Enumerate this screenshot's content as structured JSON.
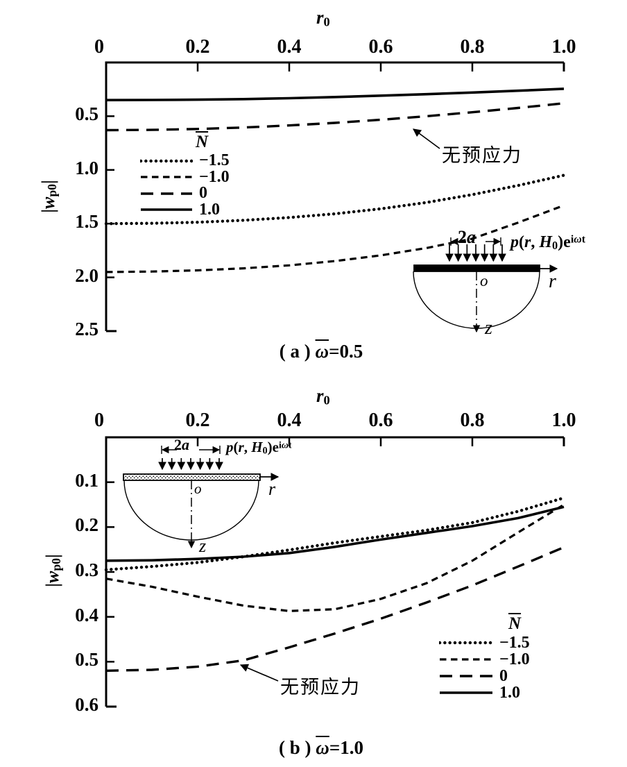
{
  "figure": {
    "background": "#ffffff",
    "ink": "#000000",
    "description": "Two stacked line charts of |wp0| versus r0 for four prestress levels N, each with an embedded half-space load schematic and a Chinese annotation meaning no prestress"
  },
  "chart_data": [
    {
      "id": "a",
      "type": "line",
      "caption": {
        "tag": "( a )",
        "symbol": "ω",
        "value": "=0.5"
      },
      "x_axis": {
        "title": "r",
        "title_sub": "0",
        "position": "top",
        "range": [
          0,
          1.0
        ],
        "tick_values": [
          0,
          0.2,
          0.4,
          0.6,
          0.8,
          1.0
        ],
        "tick_labels": [
          "0",
          "0.2",
          "0.4",
          "0.6",
          "0.8",
          "1.0"
        ]
      },
      "y_axis": {
        "label_open": "|",
        "label_symbol": "w",
        "label_sub": "p0",
        "label_close": "|",
        "range": [
          0,
          2.5
        ],
        "inverted": true,
        "grid": false,
        "tick_values": [
          0.5,
          1.0,
          1.5,
          2.0,
          2.5
        ],
        "tick_labels": [
          "0.5",
          "1.0",
          "1.5",
          "2.0",
          "2.5"
        ]
      },
      "legend": {
        "title": "N",
        "items": [
          {
            "label": "−1.5",
            "dash": "dotted"
          },
          {
            "label": "−1.0",
            "dash": "shortdash"
          },
          {
            "label": "0",
            "dash": "longdash"
          },
          {
            "label": "1.0",
            "dash": "solid"
          }
        ]
      },
      "annotation": {
        "text": "无预应力",
        "points_to": "N=0 curve"
      },
      "x": [
        0,
        0.1,
        0.2,
        0.3,
        0.4,
        0.5,
        0.6,
        0.7,
        0.8,
        0.9,
        1.0
      ],
      "series": [
        {
          "name": "N=−1.5",
          "dash": "dotted",
          "values": [
            1.5,
            1.497,
            1.487,
            1.469,
            1.443,
            1.408,
            1.362,
            1.303,
            1.23,
            1.145,
            1.05
          ]
        },
        {
          "name": "N=−1.0",
          "dash": "shortdash",
          "values": [
            1.95,
            1.946,
            1.935,
            1.916,
            1.888,
            1.848,
            1.795,
            1.727,
            1.64,
            1.49,
            1.33
          ]
        },
        {
          "name": "N=0",
          "dash": "longdash",
          "values": [
            0.63,
            0.627,
            0.619,
            0.605,
            0.586,
            0.562,
            0.533,
            0.5,
            0.463,
            0.423,
            0.38
          ]
        },
        {
          "name": "N=1.0",
          "dash": "solid",
          "values": [
            0.35,
            0.349,
            0.346,
            0.341,
            0.333,
            0.322,
            0.309,
            0.295,
            0.28,
            0.263,
            0.245
          ]
        }
      ],
      "inset": {
        "plate_fill": "solid-black",
        "dim_label": {
          "coef": "2",
          "var": "a"
        },
        "load_label": {
          "fn": "p",
          "paren_open": "(",
          "arg1": "r",
          "comma": ", ",
          "arg2": "H",
          "arg2_sub": "0",
          "paren_close": ")",
          "base": "e",
          "exp_i": "i",
          "exp_omega": "ω",
          "exp_t": "t"
        },
        "origin_label": "o",
        "r_axis_label": "r",
        "z_axis_label": "z"
      }
    },
    {
      "id": "b",
      "type": "line",
      "caption": {
        "tag": "( b )",
        "symbol": "ω",
        "value": "=1.0"
      },
      "x_axis": {
        "title": "r",
        "title_sub": "0",
        "position": "top",
        "range": [
          0,
          1.0
        ],
        "tick_values": [
          0,
          0.2,
          0.4,
          0.6,
          0.8,
          1.0
        ],
        "tick_labels": [
          "0",
          "0.2",
          "0.4",
          "0.6",
          "0.8",
          "1.0"
        ]
      },
      "y_axis": {
        "label_open": "|",
        "label_symbol": "w",
        "label_sub": "p0",
        "label_close": "|",
        "range": [
          0,
          0.6
        ],
        "inverted": true,
        "grid": false,
        "tick_values": [
          0.1,
          0.2,
          0.3,
          0.4,
          0.5,
          0.6
        ],
        "tick_labels": [
          "0.1",
          "0.2",
          "0.3",
          "0.4",
          "0.5",
          "0.6"
        ]
      },
      "legend": {
        "title": "N",
        "items": [
          {
            "label": "−1.5",
            "dash": "dotted"
          },
          {
            "label": "−1.0",
            "dash": "shortdash"
          },
          {
            "label": "0",
            "dash": "longdash"
          },
          {
            "label": "1.0",
            "dash": "solid"
          }
        ]
      },
      "annotation": {
        "text": "无预应力",
        "points_to": "N=0 curve"
      },
      "x": [
        0,
        0.1,
        0.2,
        0.3,
        0.4,
        0.5,
        0.6,
        0.7,
        0.8,
        0.9,
        1.0
      ],
      "series": [
        {
          "name": "N=−1.5",
          "dash": "dotted",
          "values": [
            0.295,
            0.288,
            0.279,
            0.266,
            0.251,
            0.235,
            0.221,
            0.207,
            0.19,
            0.165,
            0.135
          ]
        },
        {
          "name": "N=−1.0",
          "dash": "shortdash",
          "values": [
            0.315,
            0.333,
            0.355,
            0.375,
            0.387,
            0.383,
            0.36,
            0.325,
            0.275,
            0.212,
            0.15
          ]
        },
        {
          "name": "N=0",
          "dash": "longdash",
          "values": [
            0.52,
            0.518,
            0.511,
            0.497,
            0.468,
            0.437,
            0.404,
            0.368,
            0.33,
            0.288,
            0.245
          ]
        },
        {
          "name": "N=1.0",
          "dash": "solid",
          "values": [
            0.275,
            0.274,
            0.271,
            0.266,
            0.258,
            0.244,
            0.228,
            0.213,
            0.198,
            0.18,
            0.155
          ]
        }
      ],
      "inset": {
        "plate_fill": "stippled",
        "dim_label": {
          "coef": "2",
          "var": "a"
        },
        "load_label": {
          "fn": "p",
          "paren_open": "(",
          "arg1": "r",
          "comma": ", ",
          "arg2": "H",
          "arg2_sub": "0",
          "paren_close": ")",
          "base": "e",
          "exp_i": "i",
          "exp_omega": "ω",
          "exp_t": "t"
        },
        "origin_label": "o",
        "r_axis_label": "r",
        "z_axis_label": "z"
      }
    }
  ]
}
